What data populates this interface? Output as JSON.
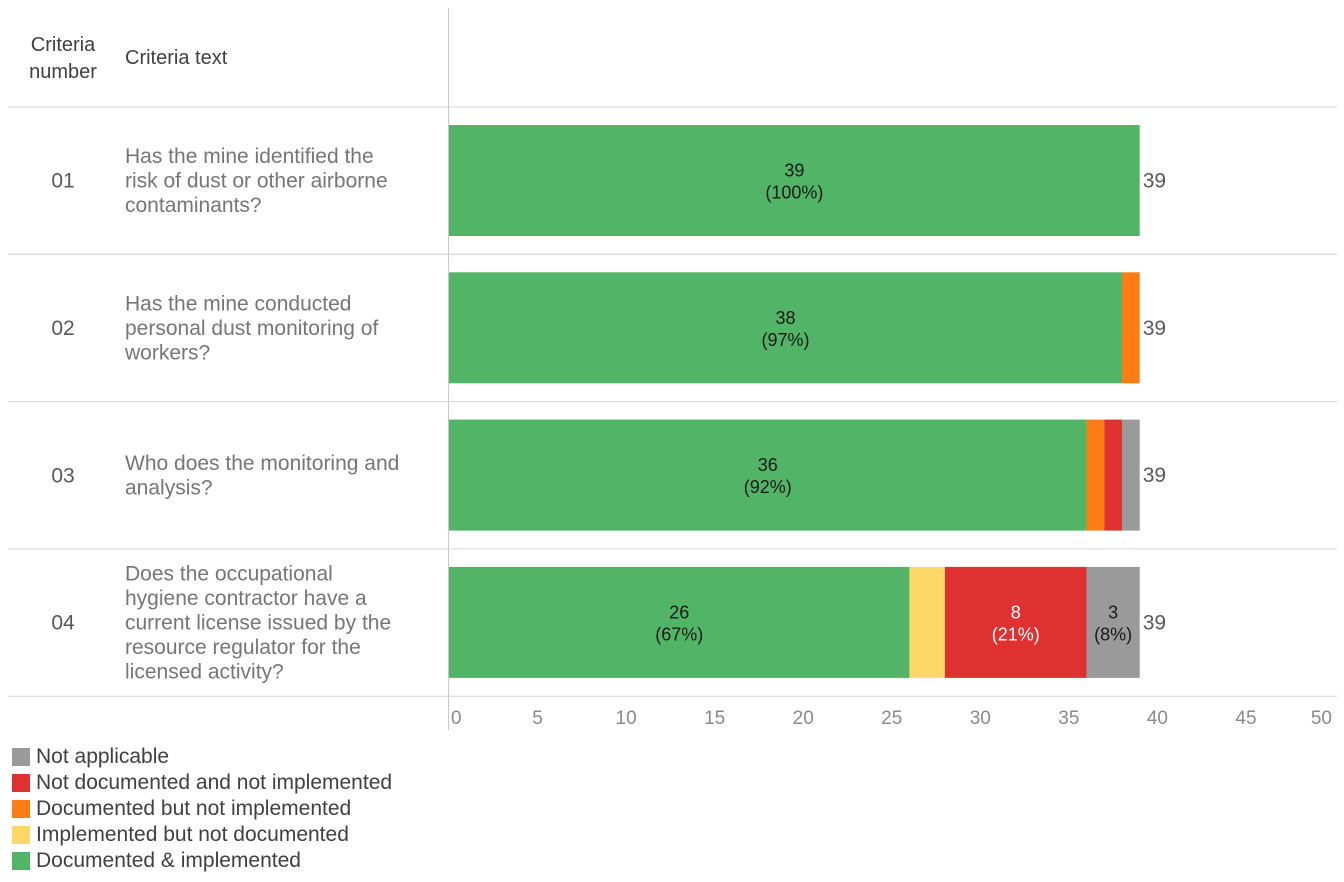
{
  "headers": {
    "number_line1": "Criteria",
    "number_line2": "number",
    "text": "Criteria text"
  },
  "chart_data": {
    "type": "bar",
    "orientation": "horizontal",
    "stacked": true,
    "categories": [
      "01",
      "02",
      "03",
      "04"
    ],
    "category_text": [
      [
        "Has the mine identified the",
        "risk of dust or other airborne",
        "contaminants?"
      ],
      [
        "Has the mine conducted",
        "personal dust monitoring of",
        "workers?"
      ],
      [
        "Who does the monitoring and",
        "analysis?"
      ],
      [
        "Does the occupational",
        "hygiene contractor have a",
        "current license issued by the",
        "resource regulator for the",
        "licensed activity?"
      ]
    ],
    "series": [
      {
        "name": "Documented & implemented",
        "color": "#52b466",
        "values": [
          39,
          38,
          36,
          26
        ],
        "labels": [
          [
            "39",
            "(100%)"
          ],
          [
            "38",
            "(97%)"
          ],
          [
            "36",
            "(92%)"
          ],
          [
            "26",
            "(67%)"
          ]
        ]
      },
      {
        "name": "Implemented but not documented",
        "color": "#fdd868",
        "values": [
          0,
          0,
          0,
          2
        ],
        "labels": [
          null,
          null,
          null,
          null
        ]
      },
      {
        "name": "Documented but not implemented",
        "color": "#fd7d14",
        "values": [
          0,
          1,
          1,
          0
        ],
        "labels": [
          null,
          null,
          null,
          null
        ]
      },
      {
        "name": "Not documented and not implemented",
        "color": "#e03131",
        "values": [
          0,
          0,
          1,
          8
        ],
        "labels": [
          null,
          null,
          null,
          [
            "8",
            "(21%)"
          ]
        ]
      },
      {
        "name": "Not applicable",
        "color": "#9a9a9a",
        "values": [
          0,
          0,
          1,
          3
        ],
        "labels": [
          null,
          null,
          null,
          [
            "3",
            "(8%)"
          ]
        ]
      }
    ],
    "totals": [
      "39",
      "39",
      "39",
      "39"
    ],
    "xlim": [
      0,
      50
    ],
    "xticks": [
      "0",
      "5",
      "10",
      "15",
      "20",
      "25",
      "30",
      "35",
      "40",
      "45",
      "50"
    ],
    "legend": {
      "position": "bottom-left",
      "entries": [
        {
          "name": "Not applicable",
          "color": "#9a9a9a"
        },
        {
          "name": "Not documented and not implemented",
          "color": "#e03131"
        },
        {
          "name": "Documented but not implemented",
          "color": "#fd7d14"
        },
        {
          "name": "Implemented but not documented",
          "color": "#fdd868"
        },
        {
          "name": "Documented & implemented",
          "color": "#52b466"
        }
      ]
    }
  }
}
